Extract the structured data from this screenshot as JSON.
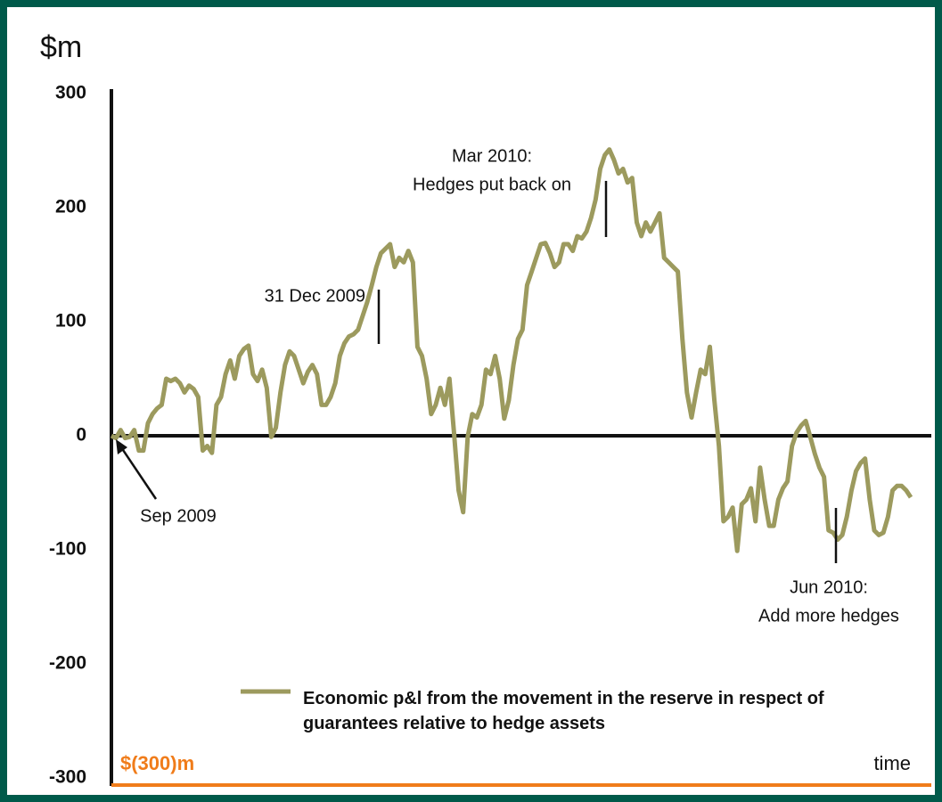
{
  "chart_data": {
    "type": "line",
    "ylabel": "$m",
    "xlabel": "time",
    "floor_label": "$(300)m",
    "ylim": [
      -300,
      300
    ],
    "yticks": [
      300,
      200,
      100,
      0,
      -100,
      -200,
      -300
    ],
    "grid": false,
    "series": [
      {
        "name": "Economic p&l from the movement in the reserve in respect of guarantees relative to hedge assets",
        "color": "#9c9a5e",
        "values": [
          0,
          -2,
          5,
          -2,
          -1,
          5,
          -13,
          -13,
          11,
          19,
          24,
          27,
          50,
          48,
          50,
          46,
          38,
          44,
          41,
          34,
          -13,
          -9,
          -15,
          27,
          34,
          54,
          66,
          50,
          70,
          76,
          79,
          54,
          48,
          58,
          42,
          -1,
          7,
          38,
          62,
          74,
          70,
          58,
          46,
          56,
          62,
          54,
          27,
          27,
          34,
          46,
          70,
          81,
          87,
          89,
          93,
          105,
          117,
          132,
          148,
          160,
          164,
          168,
          148,
          156,
          152,
          162,
          152,
          78,
          70,
          50,
          19,
          27,
          42,
          27,
          50,
          3,
          -48,
          -67,
          -1,
          19,
          16,
          27,
          58,
          54,
          70,
          50,
          15,
          31,
          62,
          85,
          93,
          132,
          144,
          156,
          168,
          169,
          160,
          148,
          152,
          168,
          168,
          162,
          175,
          173,
          179,
          191,
          207,
          234,
          246,
          251,
          242,
          230,
          234,
          222,
          226,
          187,
          175,
          187,
          179,
          187,
          195,
          156,
          152,
          148,
          144,
          85,
          38,
          16,
          38,
          58,
          54,
          78,
          31,
          -9,
          -75,
          -71,
          -63,
          -101,
          -60,
          -56,
          -46,
          -75,
          -28,
          -56,
          -79,
          -79,
          -56,
          -46,
          -40,
          -9,
          3,
          9,
          13,
          -1,
          -16,
          -28,
          -36,
          -83,
          -85,
          -91,
          -87,
          -71,
          -48,
          -31,
          -24,
          -20,
          -56,
          -83,
          -87,
          -85,
          -71,
          -48,
          -44,
          -44,
          -48,
          -54
        ]
      }
    ],
    "annotations": [
      [
        "Sep 2009"
      ],
      [
        "31 Dec 2009"
      ],
      [
        "Mar 2010:",
        "Hedges put back on"
      ],
      [
        "Jun 2010:",
        "Add more hedges"
      ]
    ]
  }
}
